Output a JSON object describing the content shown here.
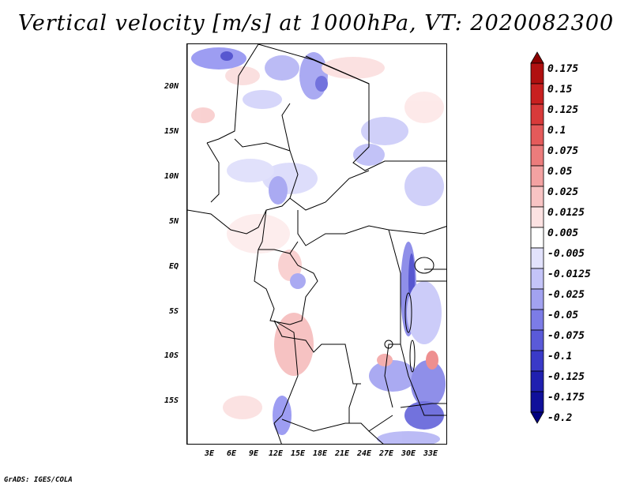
{
  "title": "Vertical velocity [m/s] at 1000hPa, VT: 2020082300",
  "footer": "GrADS: IGES/COLA",
  "map": {
    "lat_labels": [
      "20N",
      "15N",
      "10N",
      "5N",
      "EQ",
      "5S",
      "10S",
      "15S"
    ],
    "lon_labels": [
      "3E",
      "6E",
      "9E",
      "12E",
      "15E",
      "18E",
      "21E",
      "24E",
      "27E",
      "30E",
      "33E"
    ]
  },
  "colorbar": {
    "labels": [
      "0.175",
      "0.15",
      "0.125",
      "0.1",
      "0.075",
      "0.05",
      "0.025",
      "0.0125",
      "0.005",
      "-0.005",
      "-0.0125",
      "-0.025",
      "-0.05",
      "-0.075",
      "-0.1",
      "-0.125",
      "-0.175",
      "-0.2"
    ],
    "colors": [
      "#8b0000",
      "#b01010",
      "#c82020",
      "#d83a3a",
      "#e45a5a",
      "#ec7c7c",
      "#f3a2a2",
      "#f8c4c4",
      "#fce2e2",
      "#ffffff",
      "#e2e2fc",
      "#c4c4f8",
      "#a2a2f0",
      "#7c7ce6",
      "#5a5ad8",
      "#3a3ac8",
      "#2020b0",
      "#10109a",
      "#000080"
    ]
  }
}
